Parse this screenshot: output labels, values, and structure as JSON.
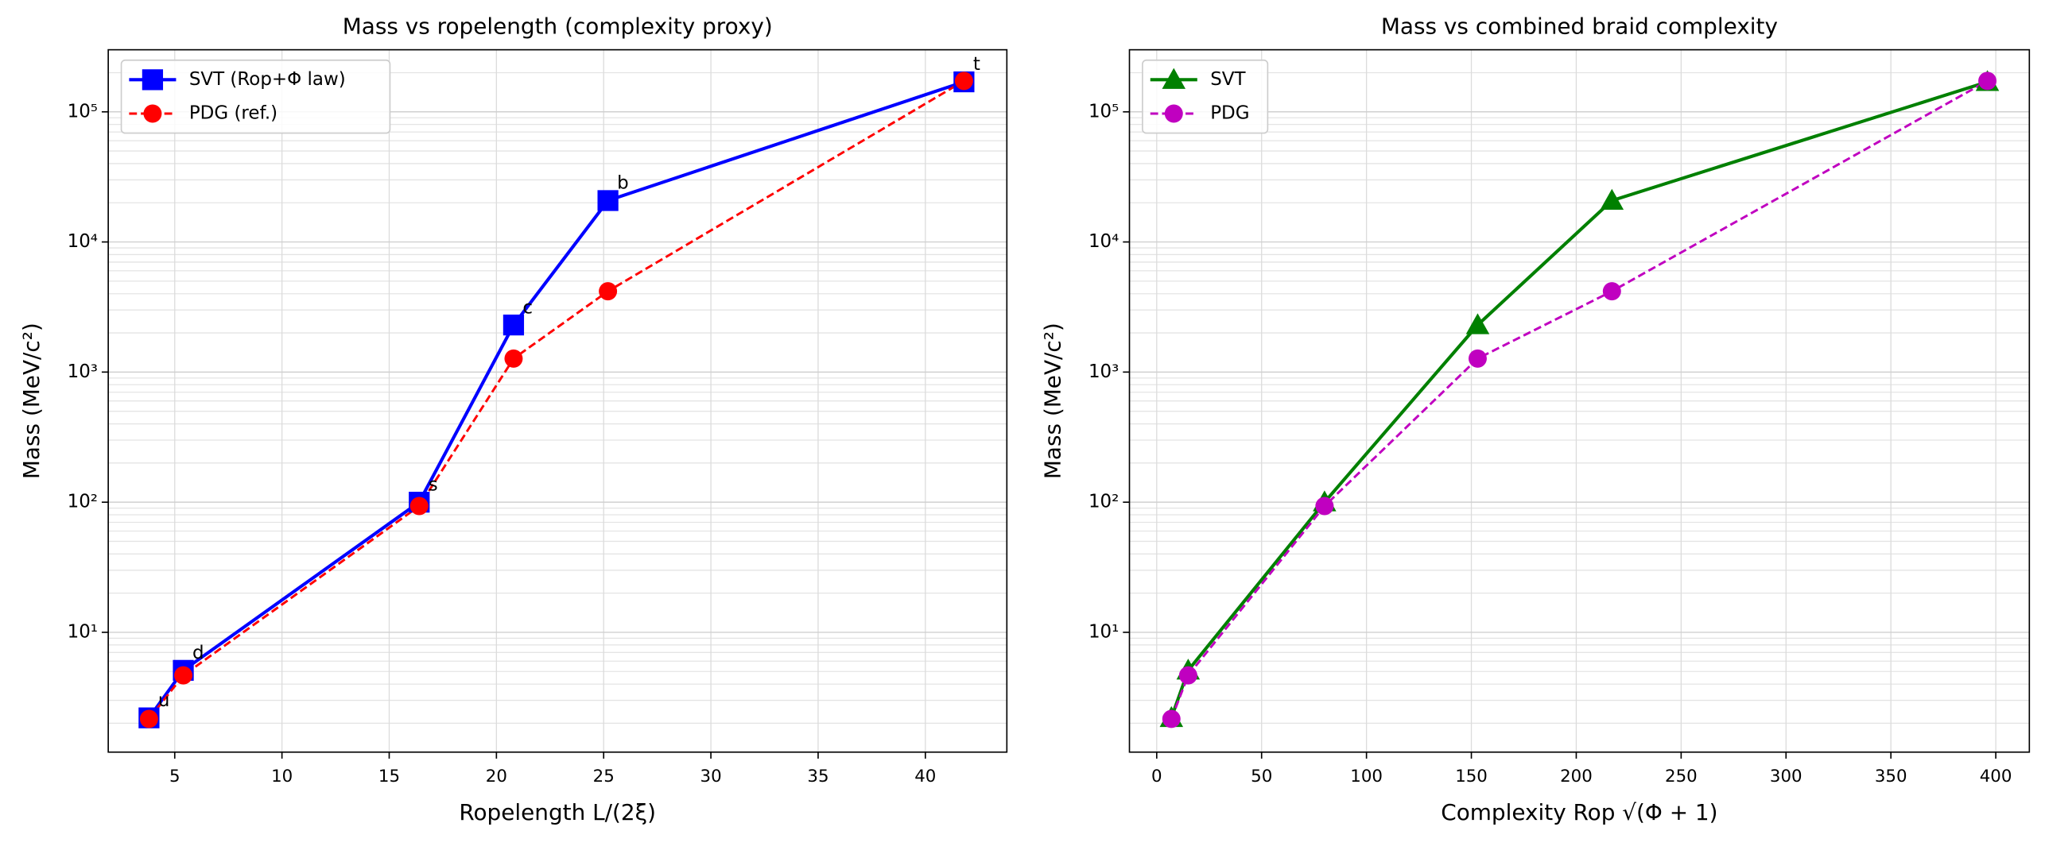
{
  "chart_data": [
    {
      "type": "line",
      "title": "Mass vs ropelength (complexity proxy)",
      "xlabel": "Ropelength L/(2ξ)",
      "ylabel": "Mass (MeV/c²)",
      "x": [
        3.8,
        5.4,
        16.4,
        20.8,
        25.2,
        41.8
      ],
      "series": [
        {
          "name": "SVT (Rop+Φ law)",
          "color": "#0000ff",
          "marker": "square",
          "linestyle": "solid",
          "values": [
            2.2,
            5.1,
            100,
            2300,
            20800,
            170000
          ]
        },
        {
          "name": "PDG (ref.)",
          "color": "#ff0000",
          "marker": "circle",
          "linestyle": "dashed",
          "values": [
            2.16,
            4.67,
            93.4,
            1270,
            4180,
            172690
          ]
        }
      ],
      "annotations": [
        "u",
        "d",
        "s",
        "c",
        "b",
        "t"
      ],
      "xlim": [
        1.9,
        43.8
      ],
      "xticks": [
        5,
        10,
        15,
        20,
        25,
        30,
        35,
        40
      ],
      "ylim": [
        1.2,
        300000
      ],
      "ylog": true,
      "yticks": [
        {
          "value": 10,
          "label": "10¹"
        },
        {
          "value": 100,
          "label": "10²"
        },
        {
          "value": 1000,
          "label": "10³"
        },
        {
          "value": 10000,
          "label": "10⁴"
        },
        {
          "value": 100000,
          "label": "10⁵"
        }
      ],
      "grid": true,
      "legend": "upper left"
    },
    {
      "type": "line",
      "title": "Mass vs combined braid complexity",
      "xlabel": "Complexity Rop √(Φ + 1)",
      "ylabel": "Mass (MeV/c²)",
      "x": [
        7,
        15,
        80,
        153,
        217,
        396
      ],
      "series": [
        {
          "name": "SVT",
          "color": "#008000",
          "marker": "triangle",
          "linestyle": "solid",
          "values": [
            2.2,
            5.1,
            100,
            2300,
            20800,
            170000
          ]
        },
        {
          "name": "PDG",
          "color": "#c000c0",
          "marker": "circle",
          "linestyle": "dashed",
          "values": [
            2.16,
            4.67,
            93.4,
            1270,
            4180,
            172690
          ]
        }
      ],
      "xlim": [
        -13,
        416
      ],
      "xticks": [
        0,
        50,
        100,
        150,
        200,
        250,
        300,
        350,
        400
      ],
      "ylim": [
        1.2,
        300000
      ],
      "ylog": true,
      "yticks": [
        {
          "value": 10,
          "label": "10¹"
        },
        {
          "value": 100,
          "label": "10²"
        },
        {
          "value": 1000,
          "label": "10³"
        },
        {
          "value": 10000,
          "label": "10⁴"
        },
        {
          "value": 100000,
          "label": "10⁵"
        }
      ],
      "grid": true,
      "legend": "upper left"
    }
  ]
}
